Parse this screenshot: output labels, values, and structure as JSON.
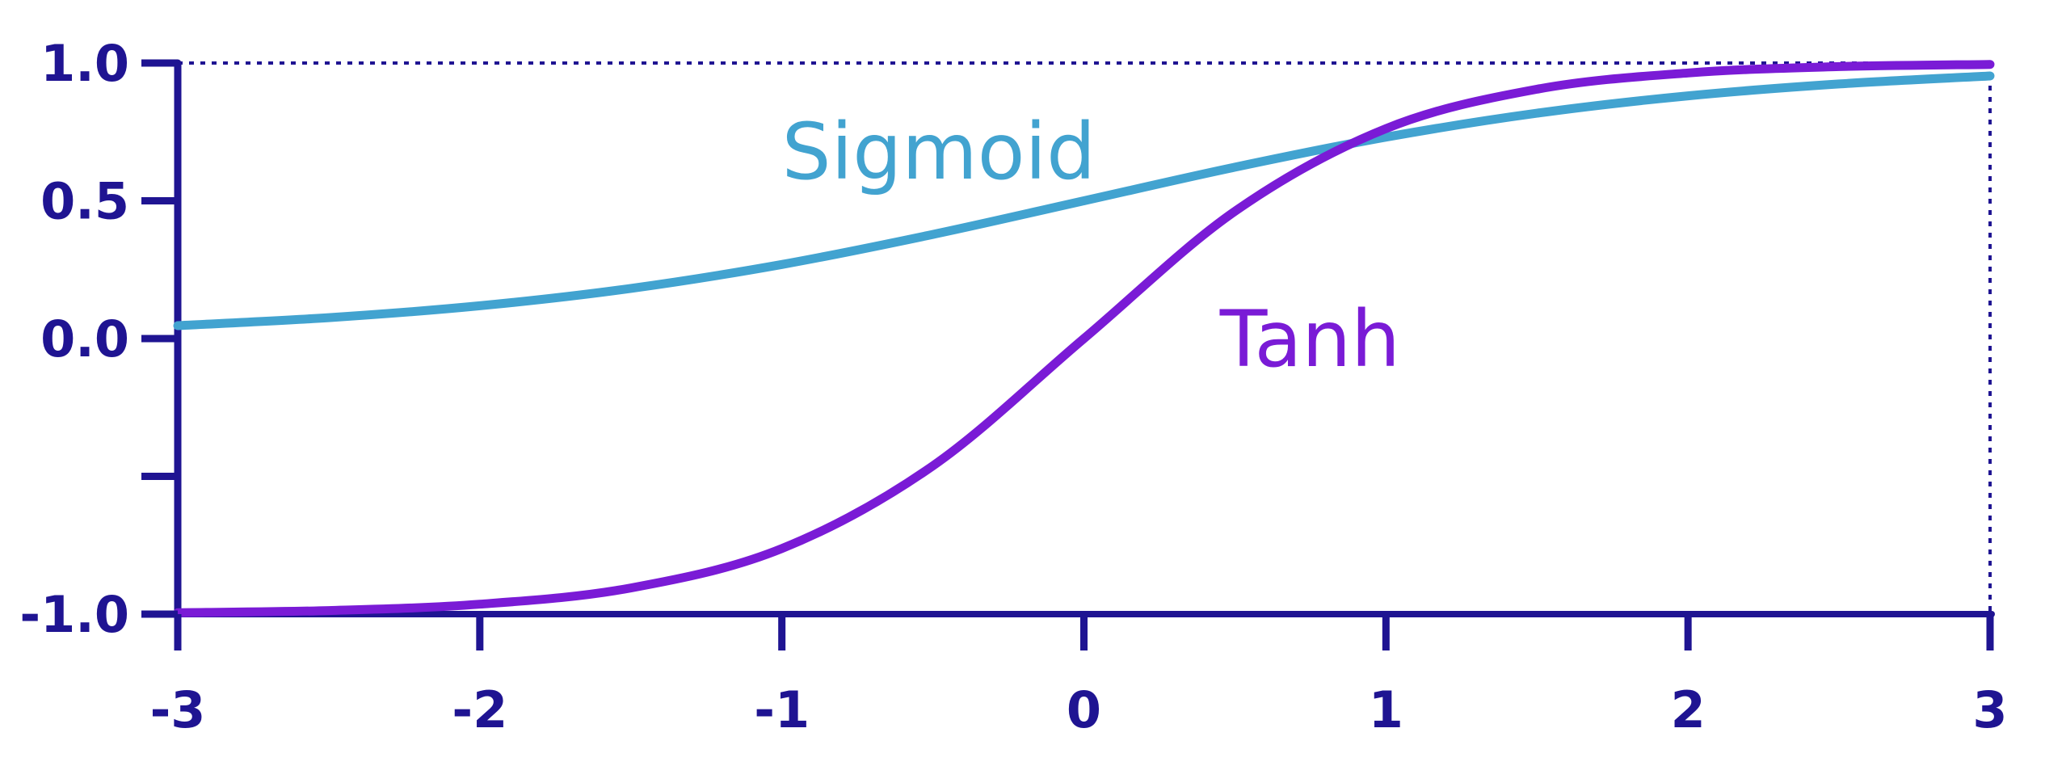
{
  "chart_data": {
    "type": "line",
    "title": "",
    "xlabel": "",
    "ylabel": "",
    "xlim": [
      -3,
      3
    ],
    "ylim": [
      -1,
      1
    ],
    "x_ticks": [
      -3,
      -2,
      -1,
      0,
      1,
      2,
      3
    ],
    "x_tick_labels": [
      "-3",
      "-2",
      "-1",
      "0",
      "1",
      "2",
      "3"
    ],
    "y_ticks": [
      -1.0,
      -0.5,
      0.0,
      0.5,
      1.0
    ],
    "y_tick_labels": [
      "-1.0",
      "",
      "0.0",
      "0.5",
      "1.0"
    ],
    "reference_lines": {
      "y_equals_1_dotted": true,
      "x_equals_3_dotted": true
    },
    "grid": false,
    "legend": "inline labels",
    "axis_color": "#1f1492",
    "series": [
      {
        "name": "Sigmoid",
        "color": "#42a3d0",
        "label_at": [
          -1.0,
          0.58
        ],
        "x": [
          -3,
          -2.5,
          -2,
          -1.5,
          -1,
          -0.5,
          0,
          0.5,
          1,
          1.5,
          2,
          2.5,
          3
        ],
        "y": [
          0.047,
          0.076,
          0.119,
          0.182,
          0.269,
          0.378,
          0.5,
          0.622,
          0.731,
          0.818,
          0.881,
          0.924,
          0.953
        ]
      },
      {
        "name": "Tanh",
        "color": "#7a1bd6",
        "label_at": [
          0.45,
          -0.1
        ],
        "x": [
          -3,
          -2.5,
          -2,
          -1.5,
          -1,
          -0.5,
          0,
          0.5,
          1,
          1.5,
          2,
          2.5,
          3
        ],
        "y": [
          -0.995,
          -0.987,
          -0.964,
          -0.905,
          -0.762,
          -0.462,
          0.0,
          0.462,
          0.762,
          0.905,
          0.964,
          0.987,
          0.995
        ]
      }
    ]
  }
}
